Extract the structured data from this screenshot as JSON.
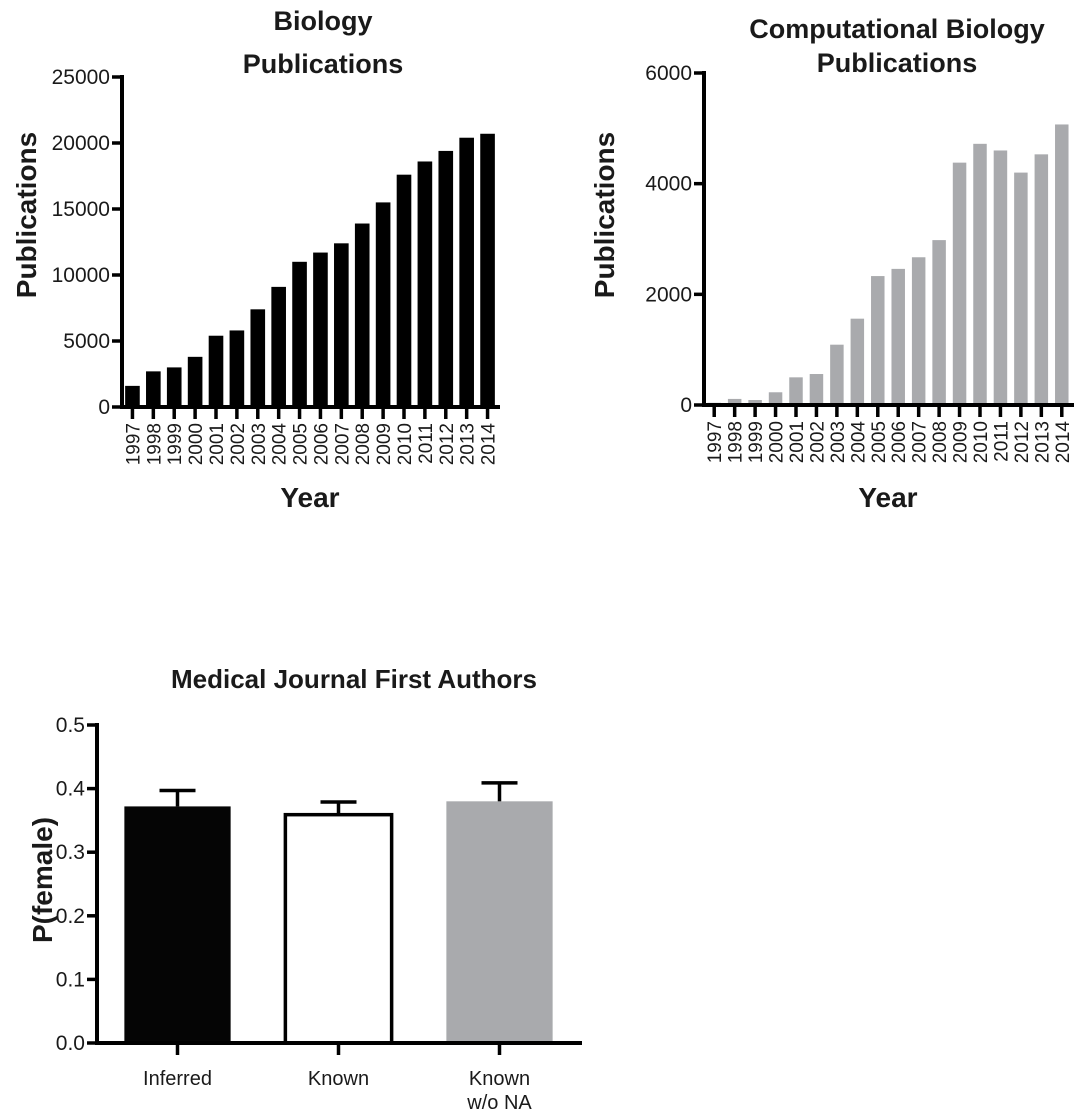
{
  "chart_data": [
    {
      "type": "bar",
      "title": [
        "Biology",
        "Publications"
      ],
      "xlabel": "Year",
      "ylabel": "Publications",
      "categories": [
        "1997",
        "1998",
        "1999",
        "2000",
        "2001",
        "2002",
        "2003",
        "2004",
        "2005",
        "2006",
        "2007",
        "2008",
        "2009",
        "2010",
        "2011",
        "2012",
        "2013",
        "2014"
      ],
      "values": [
        1600,
        2700,
        3000,
        3800,
        5400,
        5800,
        7400,
        9100,
        11000,
        11700,
        12400,
        13900,
        15500,
        17600,
        18600,
        19400,
        20400,
        20700
      ],
      "ylim": [
        0,
        25000
      ],
      "yticks": [
        "0",
        "5000",
        "10000",
        "15000",
        "20000",
        "25000"
      ],
      "color": "#000000",
      "grid": false
    },
    {
      "type": "bar",
      "title": [
        "Computational Biology",
        "Publications"
      ],
      "xlabel": "Year",
      "ylabel": "Publications",
      "categories": [
        "1997",
        "1998",
        "1999",
        "2000",
        "2001",
        "2002",
        "2003",
        "2004",
        "2005",
        "2006",
        "2007",
        "2008",
        "2009",
        "2010",
        "2011",
        "2012",
        "2013",
        "2014"
      ],
      "values": [
        40,
        110,
        90,
        230,
        500,
        560,
        1090,
        1560,
        2330,
        2460,
        2670,
        2980,
        4380,
        4720,
        4600,
        4200,
        4530,
        5070
      ],
      "ylim": [
        0,
        6000
      ],
      "yticks": [
        "0",
        "2000",
        "4000",
        "6000"
      ],
      "color": "#a9aaad",
      "grid": false
    },
    {
      "type": "bar",
      "title": [
        "Medical Journal First Authors"
      ],
      "xlabel": "",
      "ylabel": "P(female)",
      "categories": [
        [
          "Inferred"
        ],
        [
          "Known"
        ],
        [
          "Known",
          "w/o NA"
        ]
      ],
      "values": [
        0.372,
        0.359,
        0.38
      ],
      "error": [
        0.025,
        0.02,
        0.029
      ],
      "colors": [
        "#050505",
        "#ffffff",
        "#a9aaad"
      ],
      "ylim": [
        0,
        0.5
      ],
      "yticks": [
        "0.0",
        "0.1",
        "0.2",
        "0.3",
        "0.4",
        "0.5"
      ],
      "grid": false
    }
  ]
}
